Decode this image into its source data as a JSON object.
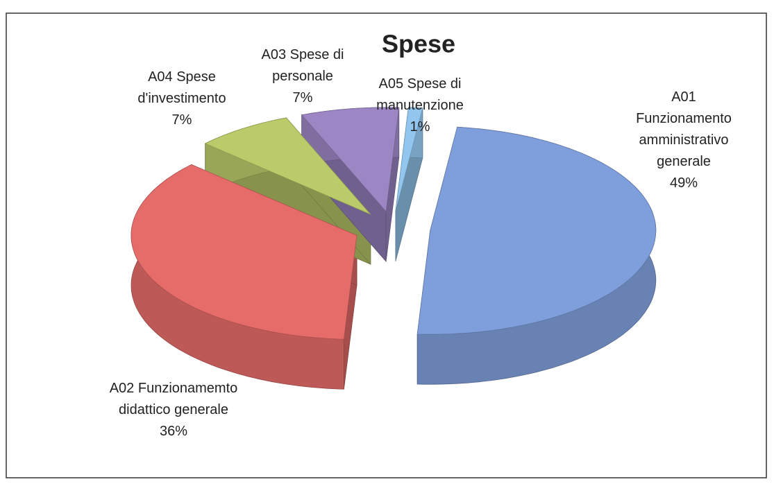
{
  "chart_data": {
    "type": "pie3d",
    "title": "Spese",
    "categories": [
      "A01 Funzionamento amministrativo generale",
      "A02 Funzionamemto didattico generale",
      "A04 Spese d'investimento",
      "A03 Spese di personale",
      "A05 Spese di manutenzione"
    ],
    "values": [
      49,
      36,
      7,
      7,
      1
    ],
    "value_labels": [
      "49%",
      "36%",
      "7%",
      "7%",
      "1%"
    ],
    "colors": [
      "#7f9fdc",
      "#e66c6a",
      "#bccb6a",
      "#9c86c4",
      "#92c6ee"
    ]
  }
}
